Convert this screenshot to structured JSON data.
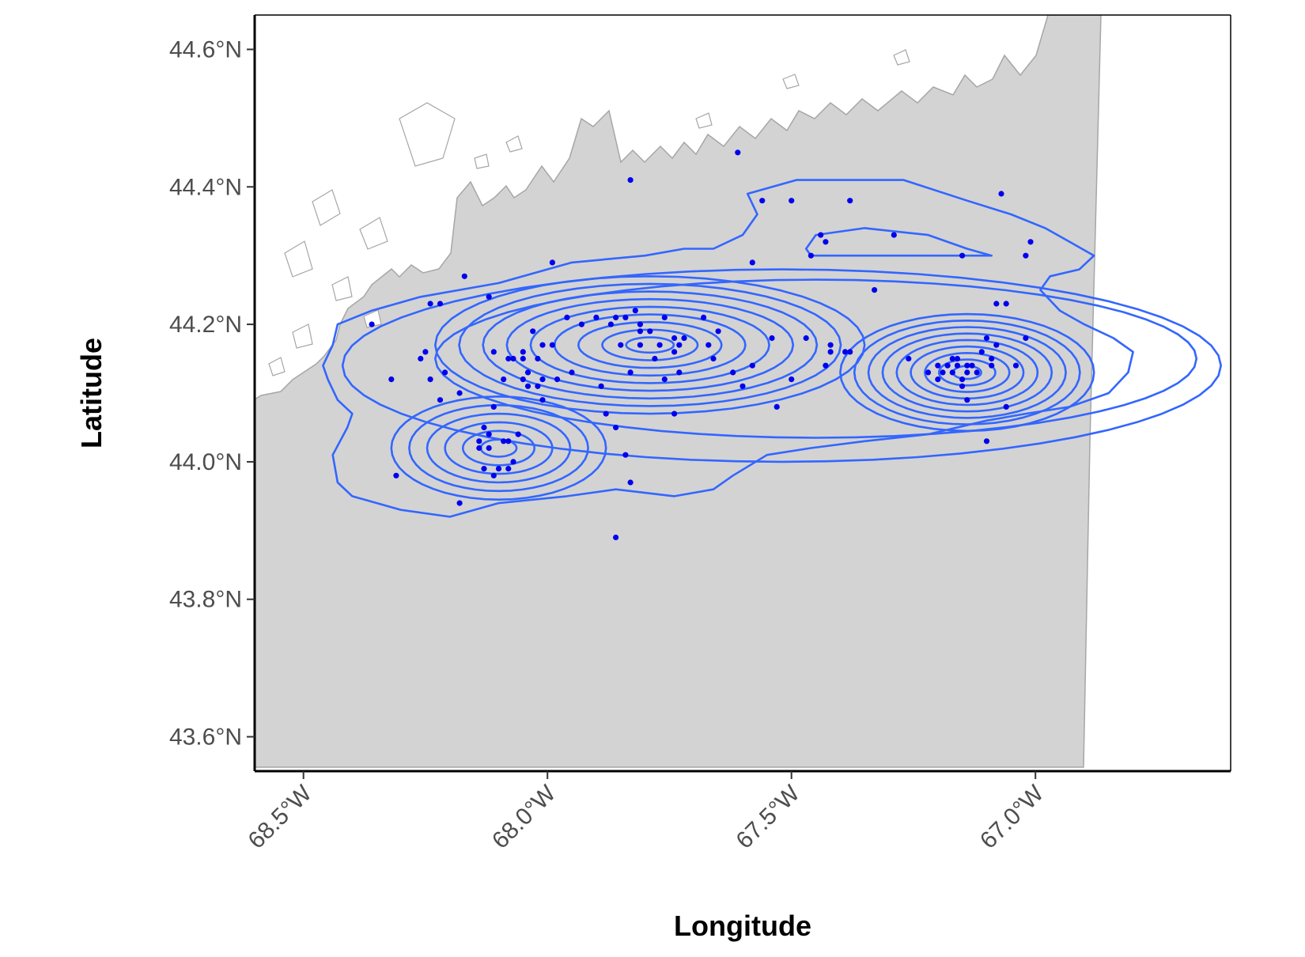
{
  "chart_data": {
    "type": "scatter",
    "xlabel": "Longitude",
    "ylabel": "Latitude",
    "xlim": [
      -68.6,
      -66.6
    ],
    "ylim": [
      43.55,
      44.65
    ],
    "x_ticks": [
      {
        "value": -68.5,
        "label": "68.5°W"
      },
      {
        "value": -68.0,
        "label": "68.0°W"
      },
      {
        "value": -67.5,
        "label": "67.5°W"
      },
      {
        "value": -67.0,
        "label": "67.0°W"
      }
    ],
    "y_ticks": [
      {
        "value": 43.6,
        "label": "43.6°N"
      },
      {
        "value": 43.8,
        "label": "43.8°N"
      },
      {
        "value": 44.0,
        "label": "44.0°N"
      },
      {
        "value": 44.2,
        "label": "44.2°N"
      },
      {
        "value": 44.4,
        "label": "44.4°N"
      },
      {
        "value": 44.6,
        "label": "44.6°N"
      }
    ],
    "grid": false,
    "colors": {
      "water": "#d3d3d3",
      "land": "#ffffff",
      "coast": "#a0a0a0",
      "points": "#0000ee",
      "contours": "#3366ff"
    },
    "points": [
      [
        -67.61,
        44.45
      ],
      [
        -67.83,
        44.41
      ],
      [
        -67.5,
        44.38
      ],
      [
        -67.56,
        44.38
      ],
      [
        -67.38,
        44.38
      ],
      [
        -67.07,
        44.39
      ],
      [
        -67.44,
        44.33
      ],
      [
        -67.29,
        44.33
      ],
      [
        -67.43,
        44.32
      ],
      [
        -67.46,
        44.3
      ],
      [
        -67.15,
        44.3
      ],
      [
        -67.02,
        44.3
      ],
      [
        -67.01,
        44.32
      ],
      [
        -67.58,
        44.29
      ],
      [
        -67.99,
        44.29
      ],
      [
        -68.17,
        44.27
      ],
      [
        -67.33,
        44.25
      ],
      [
        -68.12,
        44.24
      ],
      [
        -68.22,
        44.23
      ],
      [
        -67.08,
        44.23
      ],
      [
        -67.06,
        44.23
      ],
      [
        -68.36,
        44.2
      ],
      [
        -67.68,
        44.21
      ],
      [
        -67.76,
        44.21
      ],
      [
        -67.84,
        44.21
      ],
      [
        -67.9,
        44.21
      ],
      [
        -67.96,
        44.21
      ],
      [
        -67.93,
        44.2
      ],
      [
        -67.87,
        44.2
      ],
      [
        -67.81,
        44.19
      ],
      [
        -67.86,
        44.21
      ],
      [
        -67.82,
        44.22
      ],
      [
        -67.79,
        44.19
      ],
      [
        -67.65,
        44.19
      ],
      [
        -67.72,
        44.18
      ],
      [
        -67.74,
        44.18
      ],
      [
        -67.67,
        44.17
      ],
      [
        -67.81,
        44.17
      ],
      [
        -67.77,
        44.17
      ],
      [
        -67.81,
        44.2
      ],
      [
        -67.54,
        44.18
      ],
      [
        -67.47,
        44.18
      ],
      [
        -67.42,
        44.17
      ],
      [
        -67.39,
        44.16
      ],
      [
        -67.02,
        44.18
      ],
      [
        -67.1,
        44.18
      ],
      [
        -67.08,
        44.17
      ],
      [
        -67.11,
        44.16
      ],
      [
        -67.09,
        44.15
      ],
      [
        -67.09,
        44.14
      ],
      [
        -67.04,
        44.14
      ],
      [
        -67.14,
        44.14
      ],
      [
        -67.13,
        44.14
      ],
      [
        -67.16,
        44.14
      ],
      [
        -67.17,
        44.13
      ],
      [
        -67.19,
        44.13
      ],
      [
        -67.15,
        44.12
      ],
      [
        -67.14,
        44.13
      ],
      [
        -67.2,
        44.12
      ],
      [
        -67.22,
        44.13
      ],
      [
        -67.26,
        44.15
      ],
      [
        -67.15,
        44.11
      ],
      [
        -67.12,
        44.13
      ],
      [
        -67.18,
        44.14
      ],
      [
        -67.16,
        44.15
      ],
      [
        -67.2,
        44.14
      ],
      [
        -67.17,
        44.15
      ],
      [
        -67.14,
        44.09
      ],
      [
        -67.06,
        44.08
      ],
      [
        -67.1,
        44.03
      ],
      [
        -67.43,
        44.14
      ],
      [
        -67.5,
        44.12
      ],
      [
        -67.42,
        44.16
      ],
      [
        -67.38,
        44.16
      ],
      [
        -67.66,
        44.15
      ],
      [
        -67.62,
        44.13
      ],
      [
        -67.6,
        44.11
      ],
      [
        -67.58,
        44.14
      ],
      [
        -67.53,
        44.08
      ],
      [
        -67.83,
        44.13
      ],
      [
        -67.76,
        44.12
      ],
      [
        -67.73,
        44.13
      ],
      [
        -67.74,
        44.16
      ],
      [
        -67.78,
        44.15
      ],
      [
        -67.73,
        44.17
      ],
      [
        -67.85,
        44.17
      ],
      [
        -68.11,
        44.16
      ],
      [
        -68.09,
        44.12
      ],
      [
        -68.05,
        44.15
      ],
      [
        -68.08,
        44.15
      ],
      [
        -68.07,
        44.15
      ],
      [
        -68.05,
        44.16
      ],
      [
        -68.01,
        44.17
      ],
      [
        -67.99,
        44.17
      ],
      [
        -68.03,
        44.19
      ],
      [
        -68.02,
        44.15
      ],
      [
        -68.04,
        44.13
      ],
      [
        -67.98,
        44.12
      ],
      [
        -68.02,
        44.11
      ],
      [
        -68.05,
        44.12
      ],
      [
        -68.01,
        44.12
      ],
      [
        -68.01,
        44.09
      ],
      [
        -68.04,
        44.11
      ],
      [
        -68.25,
        44.16
      ],
      [
        -68.21,
        44.13
      ],
      [
        -68.32,
        44.12
      ],
      [
        -67.95,
        44.13
      ],
      [
        -67.89,
        44.11
      ],
      [
        -67.74,
        44.07
      ],
      [
        -68.18,
        44.1
      ],
      [
        -68.08,
        44.03
      ],
      [
        -68.13,
        44.05
      ],
      [
        -68.11,
        44.08
      ],
      [
        -67.88,
        44.07
      ],
      [
        -67.84,
        44.01
      ],
      [
        -67.86,
        44.05
      ],
      [
        -67.86,
        43.89
      ],
      [
        -67.83,
        43.97
      ],
      [
        -68.12,
        44.04
      ],
      [
        -68.06,
        44.04
      ],
      [
        -68.09,
        44.03
      ],
      [
        -68.12,
        44.02
      ],
      [
        -68.14,
        44.03
      ],
      [
        -68.14,
        44.02
      ],
      [
        -68.13,
        43.99
      ],
      [
        -68.08,
        43.99
      ],
      [
        -68.1,
        43.99
      ],
      [
        -68.07,
        44.0
      ],
      [
        -68.11,
        43.98
      ],
      [
        -68.31,
        43.98
      ],
      [
        -68.18,
        43.94
      ],
      [
        -68.24,
        44.23
      ],
      [
        -68.24,
        44.12
      ],
      [
        -68.22,
        44.09
      ],
      [
        -68.26,
        44.15
      ]
    ],
    "contours": [
      [
        [
          -68.43,
          44.2
        ],
        [
          -68.36,
          44.22
        ],
        [
          -68.26,
          44.24
        ],
        [
          -68.1,
          44.26
        ],
        [
          -67.95,
          44.29
        ],
        [
          -67.8,
          44.3
        ],
        [
          -67.72,
          44.31
        ],
        [
          -67.66,
          44.31
        ],
        [
          -67.6,
          44.33
        ],
        [
          -67.57,
          44.36
        ],
        [
          -67.59,
          44.39
        ],
        [
          -67.49,
          44.41
        ],
        [
          -67.27,
          44.41
        ],
        [
          -67.14,
          44.38
        ],
        [
          -67.05,
          44.36
        ],
        [
          -66.98,
          44.34
        ],
        [
          -66.93,
          44.32
        ],
        [
          -66.88,
          44.3
        ],
        [
          -66.91,
          44.28
        ],
        [
          -66.97,
          44.27
        ],
        [
          -66.99,
          44.25
        ],
        [
          -66.95,
          44.22
        ],
        [
          -66.9,
          44.2
        ],
        [
          -66.84,
          44.18
        ],
        [
          -66.8,
          44.16
        ],
        [
          -66.81,
          44.13
        ],
        [
          -66.85,
          44.1
        ],
        [
          -66.93,
          44.08
        ],
        [
          -67.02,
          44.07
        ],
        [
          -67.1,
          44.06
        ],
        [
          -67.22,
          44.04
        ],
        [
          -67.35,
          44.03
        ],
        [
          -67.46,
          44.02
        ],
        [
          -67.55,
          44.01
        ],
        [
          -67.62,
          43.98
        ],
        [
          -67.66,
          43.96
        ],
        [
          -67.74,
          43.95
        ],
        [
          -67.86,
          43.96
        ],
        [
          -67.96,
          43.95
        ],
        [
          -68.1,
          43.94
        ],
        [
          -68.2,
          43.92
        ],
        [
          -68.3,
          43.93
        ],
        [
          -68.4,
          43.95
        ],
        [
          -68.43,
          43.97
        ],
        [
          -68.44,
          44.01
        ],
        [
          -68.41,
          44.05
        ],
        [
          -68.4,
          44.07
        ],
        [
          -68.43,
          44.09
        ],
        [
          -68.45,
          44.12
        ],
        [
          -68.46,
          44.14
        ],
        [
          -68.44,
          44.17
        ],
        [
          -68.43,
          44.2
        ]
      ],
      [
        [
          -67.47,
          44.31
        ],
        [
          -67.45,
          44.33
        ],
        [
          -67.35,
          44.34
        ],
        [
          -67.22,
          44.33
        ],
        [
          -67.14,
          44.31
        ],
        [
          -67.09,
          44.3
        ],
        [
          -67.12,
          44.3
        ],
        [
          -67.25,
          44.3
        ],
        [
          -67.38,
          44.3
        ],
        [
          -67.46,
          44.3
        ],
        [
          -67.47,
          44.31
        ]
      ]
    ]
  }
}
